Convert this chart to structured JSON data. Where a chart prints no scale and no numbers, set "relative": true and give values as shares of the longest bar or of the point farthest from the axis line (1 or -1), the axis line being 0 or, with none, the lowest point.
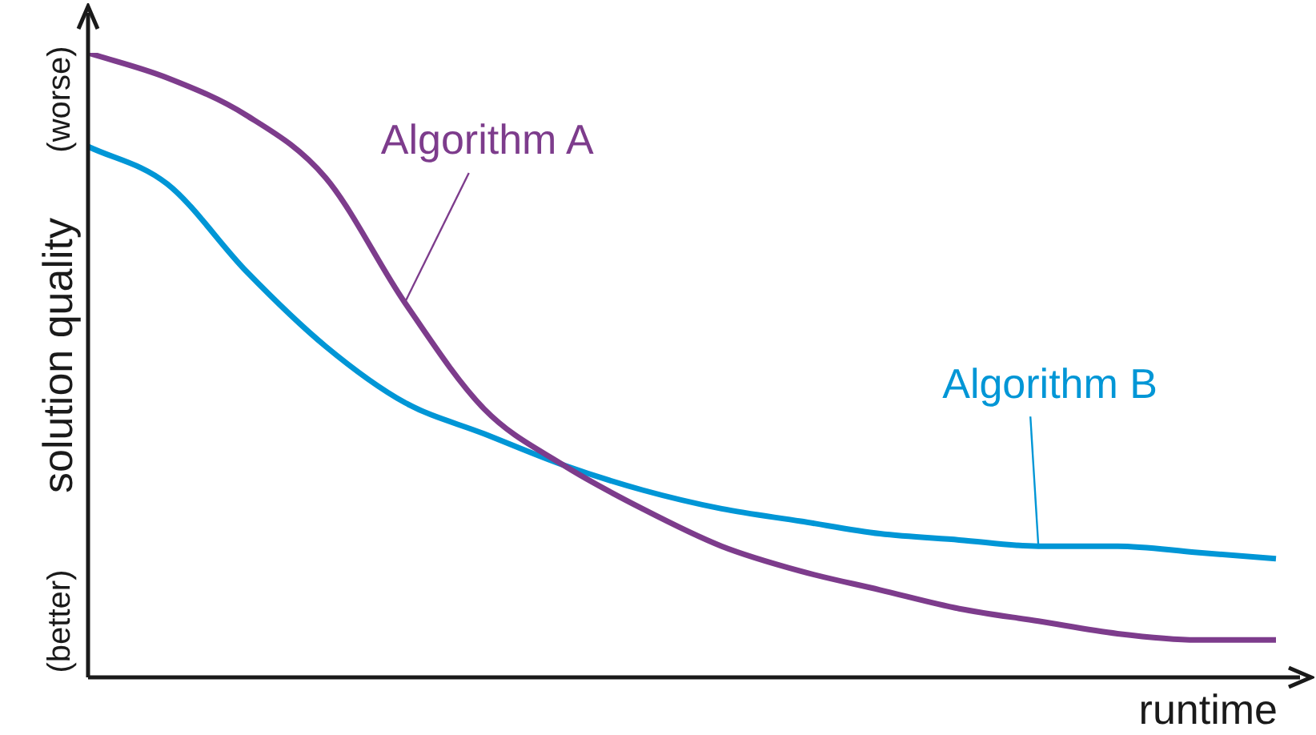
{
  "chart_data": {
    "type": "line",
    "relative": true,
    "xlabel": "runtime",
    "ylabel": "solution quality",
    "annotations": [
      "(worse)",
      "(better)"
    ],
    "categories": [
      null,
      null,
      null,
      null,
      null,
      null,
      null,
      null,
      null,
      null,
      null,
      null,
      null,
      null,
      null,
      null
    ],
    "series": [
      {
        "name": "Algorithm A",
        "color": "#7d3c8c",
        "values": [
          1,
          0.96,
          0.9,
          0.8,
          0.6,
          0.43,
          0.34,
          0.27,
          0.21,
          0.17,
          0.14,
          0.11,
          0.09,
          0.07,
          0.06,
          0.06
        ]
      },
      {
        "name": "Algorithm B",
        "color": "#0096d6",
        "values": [
          0.85,
          0.79,
          0.65,
          0.53,
          0.44,
          0.39,
          0.34,
          0.3,
          0.27,
          0.25,
          0.23,
          0.22,
          0.21,
          0.21,
          0.2,
          0.19
        ]
      }
    ],
    "grid": false,
    "legend": false,
    "marker": "none",
    "line_style": "solid"
  }
}
